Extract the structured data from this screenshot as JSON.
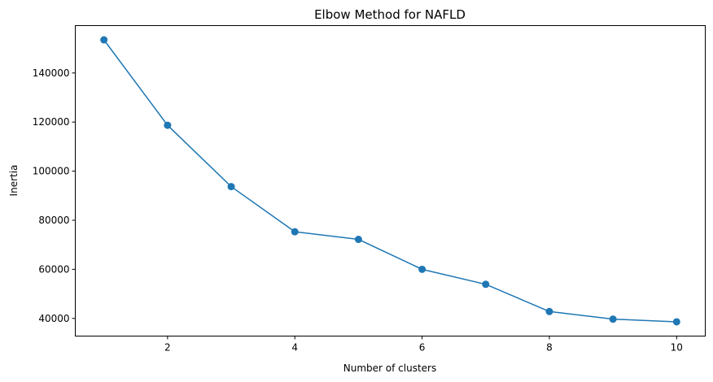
{
  "chart_data": {
    "type": "line",
    "title": "Elbow Method for NAFLD",
    "xlabel": "Number of clusters",
    "ylabel": "Inertia",
    "x": [
      1,
      2,
      3,
      4,
      5,
      6,
      7,
      8,
      9,
      10
    ],
    "series": [
      {
        "values": [
          153500,
          118700,
          93700,
          75300,
          72200,
          60000,
          53900,
          42800,
          39700,
          38600
        ],
        "color": "#1f77b4",
        "marker": "circle"
      }
    ],
    "xticks": [
      2,
      4,
      6,
      8,
      10
    ],
    "yticks": [
      40000,
      60000,
      80000,
      100000,
      120000,
      140000
    ],
    "xlim": [
      0.55,
      10.45
    ],
    "ylim": [
      32800,
      159300
    ],
    "grid": false,
    "legend": "none"
  }
}
